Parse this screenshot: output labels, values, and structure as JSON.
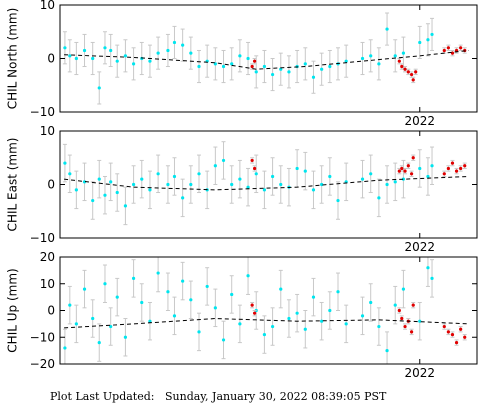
{
  "footer": {
    "label": "Plot Last Updated:",
    "value": "Sunday, January 30, 2022 08:39:05 PST"
  },
  "colors": {
    "data_point": "#00e5ee",
    "recent_point": "#e00000",
    "error_bar": "#c8c8c8",
    "trend_line": "#000000",
    "frame": "#000000"
  },
  "chart_data": [
    {
      "type": "scatter",
      "ylabel": "CHIL North (mm)",
      "ylim": [
        -10,
        10
      ],
      "yticks": [
        "10",
        "0",
        "−10"
      ],
      "xtick_label": "2022",
      "trend": {
        "x": [
          2017.65,
          2018.5,
          2019.5,
          2020.0,
          2020.6,
          2021.5,
          2022.0,
          2022.6
        ],
        "y": [
          0.7,
          0.2,
          -0.8,
          -2.0,
          -1.5,
          -0.2,
          0.5,
          1.5
        ]
      },
      "series": [
        {
          "color_key": "data_point",
          "error_mm": 3.0,
          "x": [
            2017.66,
            2017.72,
            2017.8,
            2017.9,
            2018.0,
            2018.08,
            2018.15,
            2018.22,
            2018.3,
            2018.4,
            2018.5,
            2018.6,
            2018.7,
            2018.8,
            2018.92,
            2019.0,
            2019.1,
            2019.2,
            2019.3,
            2019.4,
            2019.5,
            2019.6,
            2019.7,
            2019.8,
            2019.9,
            2020.0,
            2020.1,
            2020.2,
            2020.3,
            2020.4,
            2020.5,
            2020.6,
            2020.7,
            2020.8,
            2020.9,
            2021.0,
            2021.1,
            2021.3,
            2021.4,
            2021.5,
            2021.6,
            2021.7,
            2021.8,
            2022.0,
            2022.1,
            2022.15
          ],
          "y": [
            2.0,
            0.5,
            0.0,
            1.5,
            0.0,
            -5.5,
            2.0,
            1.5,
            -0.5,
            0.5,
            -1.0,
            0.0,
            -0.5,
            1.0,
            1.5,
            3.0,
            2.5,
            1.0,
            -1.5,
            -0.5,
            -1.0,
            -1.5,
            -1.0,
            0.5,
            0.0,
            -2.5,
            -1.5,
            -3.0,
            -2.0,
            -2.5,
            -1.5,
            -1.0,
            -3.5,
            -2.0,
            -1.5,
            -1.0,
            -0.5,
            0.0,
            0.5,
            -1.0,
            5.5,
            0.5,
            1.0,
            3.0,
            3.5,
            4.5
          ]
        },
        {
          "color_key": "recent_point",
          "error_mm": 0.5,
          "x": [
            2019.95,
            2019.98,
            2021.75,
            2021.78,
            2021.82,
            2021.86,
            2021.9,
            2021.92,
            2021.95,
            2022.3,
            2022.35,
            2022.4,
            2022.45,
            2022.5,
            2022.55
          ],
          "y": [
            -1.5,
            -0.5,
            -0.5,
            -1.5,
            -2.0,
            -2.5,
            -3.0,
            -4.0,
            -2.5,
            1.5,
            2.0,
            1.0,
            1.5,
            2.0,
            1.5
          ]
        }
      ]
    },
    {
      "type": "scatter",
      "ylabel": "CHIL East (mm)",
      "ylim": [
        -10,
        10
      ],
      "yticks": [
        "10",
        "0",
        "−10"
      ],
      "xtick_label": "2022",
      "trend": {
        "x": [
          2017.65,
          2018.5,
          2019.5,
          2020.5,
          2021.5,
          2022.6
        ],
        "y": [
          1.0,
          -0.5,
          -1.0,
          -0.5,
          0.8,
          1.5
        ]
      },
      "series": [
        {
          "color_key": "data_point",
          "error_mm": 3.5,
          "x": [
            2017.66,
            2017.72,
            2017.8,
            2017.9,
            2018.0,
            2018.08,
            2018.15,
            2018.22,
            2018.3,
            2018.4,
            2018.5,
            2018.6,
            2018.7,
            2018.8,
            2018.92,
            2019.0,
            2019.1,
            2019.2,
            2019.3,
            2019.4,
            2019.5,
            2019.6,
            2019.7,
            2019.8,
            2019.9,
            2020.0,
            2020.1,
            2020.2,
            2020.3,
            2020.4,
            2020.5,
            2020.6,
            2020.7,
            2020.8,
            2020.9,
            2021.0,
            2021.1,
            2021.3,
            2021.4,
            2021.5,
            2021.6,
            2021.7,
            2021.8,
            2022.0,
            2022.1,
            2022.15
          ],
          "y": [
            4.0,
            2.0,
            -1.0,
            0.5,
            -3.0,
            1.0,
            -2.0,
            0.5,
            -1.5,
            -4.0,
            0.0,
            1.0,
            -1.0,
            2.0,
            0.0,
            1.5,
            -2.5,
            0.0,
            2.0,
            -1.0,
            3.5,
            4.5,
            0.0,
            1.0,
            -0.5,
            2.0,
            -1.0,
            1.5,
            0.0,
            -0.5,
            3.0,
            2.5,
            -1.0,
            0.0,
            1.5,
            -3.0,
            0.5,
            1.0,
            2.0,
            -2.5,
            0.0,
            0.5,
            1.0,
            3.0,
            1.5,
            3.5
          ]
        },
        {
          "color_key": "recent_point",
          "error_mm": 0.5,
          "x": [
            2019.95,
            2019.98,
            2021.75,
            2021.78,
            2021.82,
            2021.86,
            2021.9,
            2021.92,
            2022.3,
            2022.35,
            2022.4,
            2022.45,
            2022.5,
            2022.55
          ],
          "y": [
            4.5,
            3.0,
            2.5,
            3.0,
            2.5,
            3.5,
            2.0,
            5.0,
            2.0,
            3.0,
            4.0,
            2.5,
            3.0,
            3.5
          ]
        }
      ]
    },
    {
      "type": "scatter",
      "ylabel": "CHIL Up (mm)",
      "ylim": [
        -20,
        20
      ],
      "yticks": [
        "20",
        "10",
        "0",
        "−10",
        "−20"
      ],
      "xtick_label": "2022",
      "trend": {
        "x": [
          2017.65,
          2018.5,
          2019.5,
          2020.5,
          2021.5,
          2022.6
        ],
        "y": [
          -6.5,
          -5.0,
          -3.0,
          -4.0,
          -3.5,
          -5.0
        ]
      },
      "series": [
        {
          "color_key": "data_point",
          "error_mm": 7.0,
          "x": [
            2017.66,
            2017.72,
            2017.8,
            2017.9,
            2018.0,
            2018.08,
            2018.15,
            2018.22,
            2018.3,
            2018.4,
            2018.5,
            2018.6,
            2018.7,
            2018.8,
            2018.92,
            2019.0,
            2019.1,
            2019.2,
            2019.3,
            2019.4,
            2019.5,
            2019.6,
            2019.7,
            2019.8,
            2019.9,
            2020.0,
            2020.1,
            2020.2,
            2020.3,
            2020.4,
            2020.5,
            2020.6,
            2020.7,
            2020.8,
            2020.9,
            2021.0,
            2021.1,
            2021.3,
            2021.4,
            2021.5,
            2021.6,
            2021.7,
            2021.8,
            2022.0,
            2022.1,
            2022.15
          ],
          "y": [
            -14.0,
            2.0,
            -5.0,
            8.0,
            -3.0,
            -12.0,
            10.0,
            -6.0,
            5.0,
            -10.0,
            12.0,
            3.0,
            -4.0,
            14.0,
            7.0,
            -2.0,
            11.0,
            4.0,
            -8.0,
            9.0,
            1.0,
            -11.0,
            6.0,
            -5.0,
            13.0,
            0.0,
            -9.0,
            -6.0,
            8.0,
            -3.0,
            -1.0,
            -7.0,
            5.0,
            -4.0,
            0.0,
            7.0,
            -5.0,
            -2.0,
            3.0,
            -6.0,
            -15.0,
            2.0,
            8.0,
            -4.0,
            16.0,
            12.0
          ]
        },
        {
          "color_key": "recent_point",
          "error_mm": 1.0,
          "x": [
            2019.95,
            2019.98,
            2021.75,
            2021.78,
            2021.82,
            2021.86,
            2021.9,
            2021.92,
            2022.3,
            2022.35,
            2022.4,
            2022.45,
            2022.5,
            2022.55
          ],
          "y": [
            2.0,
            -1.0,
            0.0,
            -3.0,
            -6.0,
            -4.0,
            -8.0,
            2.0,
            -6.0,
            -8.0,
            -9.0,
            -12.0,
            -7.0,
            -10.0
          ]
        }
      ]
    }
  ]
}
